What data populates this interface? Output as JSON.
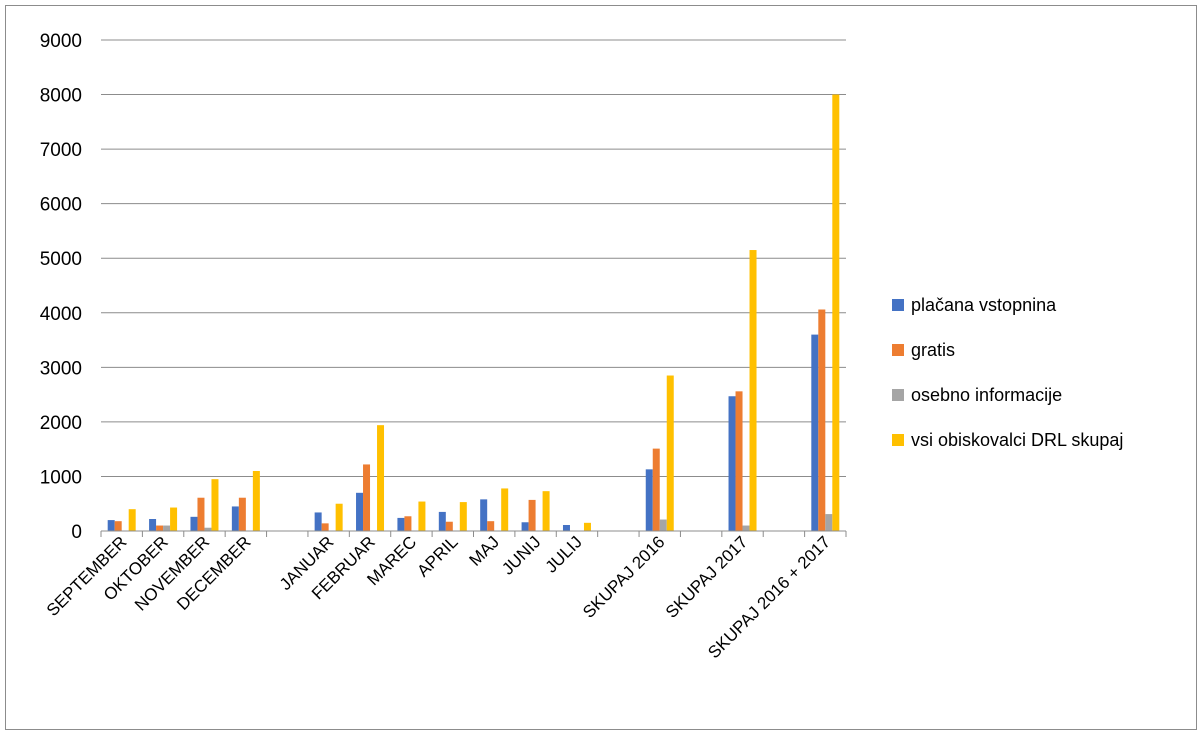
{
  "chart_data": {
    "type": "bar",
    "categories": [
      "SEPTEMBER",
      "OKTOBER",
      "NOVEMBER",
      "DECEMBER",
      "",
      "JANUAR",
      "FEBRUAR",
      "MAREC",
      "APRIL",
      "MAJ",
      "JUNIJ",
      "JULIJ",
      "",
      "SKUPAJ 2016",
      "",
      "SKUPAJ 2017",
      "",
      "SKUPAJ 2016 + 2017"
    ],
    "series": [
      {
        "name": "plačana vstopnina",
        "color": "#4472C4",
        "values": [
          200,
          220,
          260,
          450,
          null,
          340,
          700,
          240,
          350,
          580,
          160,
          110,
          null,
          1130,
          null,
          2470,
          null,
          3600
        ]
      },
      {
        "name": "gratis",
        "color": "#ED7D31",
        "values": [
          180,
          100,
          610,
          610,
          null,
          140,
          1220,
          270,
          170,
          180,
          570,
          0,
          null,
          1510,
          null,
          2560,
          null,
          4060
        ]
      },
      {
        "name": "osebno informacije",
        "color": "#A5A5A5",
        "values": [
          0,
          100,
          60,
          0,
          null,
          0,
          0,
          0,
          0,
          0,
          0,
          0,
          null,
          210,
          null,
          100,
          null,
          310
        ]
      },
      {
        "name": "vsi obiskovalci DRL skupaj",
        "color": "#FFC000",
        "values": [
          400,
          430,
          950,
          1100,
          null,
          500,
          1940,
          540,
          530,
          780,
          730,
          150,
          null,
          2850,
          null,
          5150,
          null,
          8000
        ]
      }
    ],
    "yticks": [
      "0",
      "1000",
      "2000",
      "3000",
      "4000",
      "5000",
      "6000",
      "7000",
      "8000",
      "9000"
    ],
    "ylim": [
      0,
      9000
    ],
    "grid": true,
    "legend": "right"
  }
}
